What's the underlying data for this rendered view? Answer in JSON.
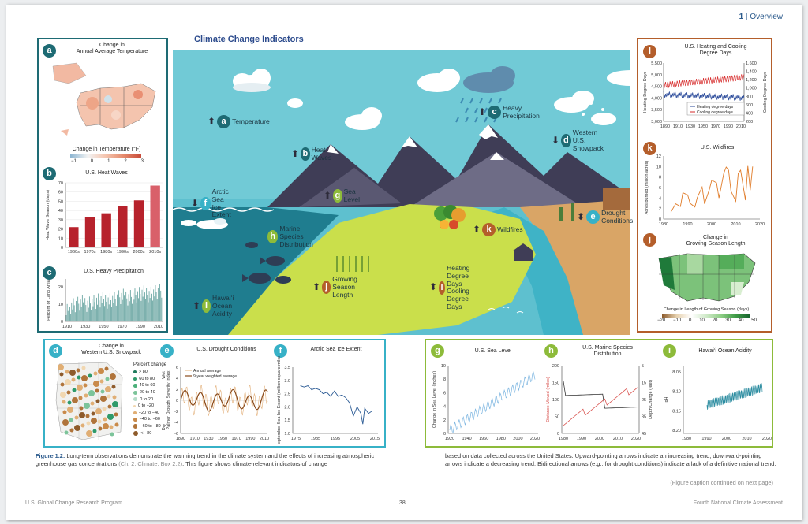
{
  "header": {
    "section_num": "1",
    "separator": "|",
    "section": "Overview"
  },
  "main_title": "Climate Change Indicators",
  "colors": {
    "teal": "#1e6b74",
    "orange": "#c0692b",
    "green": "#8dbb3a",
    "crimson": "#b7222c",
    "blue": "#2a5a94"
  },
  "panels": {
    "a": {
      "letter": "a",
      "title": "Change in\nAnnual Average Temperature",
      "legend_title": "Change in Temperature (°F)",
      "legend_ticks": [
        "−1",
        "0",
        "1",
        "2",
        "3"
      ]
    },
    "b": {
      "letter": "b",
      "title": "U.S. Heat Waves",
      "ylabel": "Heat Wave Season (days)",
      "yticks": [
        "0",
        "10",
        "20",
        "30",
        "40",
        "50",
        "60",
        "70"
      ]
    },
    "c": {
      "letter": "c",
      "title": "U.S. Heavy Precipitation",
      "ylabel": "Percent of Land Area",
      "yticks": [
        "0",
        "10",
        "20"
      ],
      "xticks": [
        "1910",
        "1930",
        "1950",
        "1970",
        "1990",
        "2010"
      ]
    },
    "d": {
      "letter": "d",
      "title": "Change in\nWestern U.S. Snowpack",
      "legend_title": "Percent change",
      "legend": [
        "> 80",
        "60 to 80",
        "40 to 60",
        "20 to 40",
        "0 to 20",
        "0 to −20",
        "−20 to −40",
        "−40 to −60",
        "−60 to −80",
        "< −80"
      ]
    },
    "e": {
      "letter": "e",
      "title": "U.S. Drought Conditions",
      "ylabel": "Palmer Drought Severity Index",
      "wet": "Wet",
      "dry": "Dry",
      "legend": [
        "Annual average",
        "9-year weighted average"
      ],
      "yticks": [
        "6",
        "4",
        "2",
        "0",
        "-2",
        "-4",
        "-6"
      ],
      "xticks": [
        "1890",
        "1910",
        "1930",
        "1950",
        "1970",
        "1990",
        "2010"
      ]
    },
    "f": {
      "letter": "f",
      "title": "Arctic Sea Ice Extent",
      "ylabel": "September Sea Ice Extent (million square miles)",
      "yticks": [
        "3.5",
        "3.0",
        "2.5",
        "2.0",
        "1.5",
        "1.0"
      ],
      "xticks": [
        "1975",
        "1985",
        "1995",
        "2005",
        "2015"
      ]
    },
    "g": {
      "letter": "g",
      "title": "U.S. Sea Level",
      "ylabel": "Change in Sea Level (inches)",
      "yticks": [
        "10",
        "8",
        "6",
        "4",
        "2",
        "0"
      ],
      "xticks": [
        "1920",
        "1940",
        "1960",
        "1980",
        "2000",
        "2020"
      ]
    },
    "h": {
      "letter": "h",
      "title": "U.S. Marine Species\nDistribution",
      "ylabel_left": "Distance Moved (miles)",
      "ylabel_right": "Depth Change (feet)",
      "yticks_left": [
        "200",
        "150",
        "100",
        "50",
        "0"
      ],
      "yticks_right": [
        "5",
        "15",
        "25",
        "35",
        "45"
      ],
      "xticks": [
        "1980",
        "1990",
        "2000",
        "2010",
        "2020"
      ]
    },
    "i": {
      "letter": "i",
      "title": "Hawai‘i Ocean Acidity",
      "ylabel": "pH",
      "yticks": [
        "8.05",
        "8.10",
        "8.15",
        "8.20"
      ],
      "xticks": [
        "1980",
        "1990",
        "2000",
        "2010",
        "2020"
      ]
    },
    "j": {
      "letter": "j",
      "title": "Change in\nGrowing Season Length",
      "legend_title": "Change in Length of Growing Season (days)",
      "legend_ticks": [
        "−20",
        "−10",
        "0",
        "10",
        "20",
        "30",
        "40",
        "50"
      ]
    },
    "k": {
      "letter": "k",
      "title": "U.S. Wildfires",
      "ylabel": "Acres burned (million acres)",
      "yticks": [
        "12",
        "10",
        "8",
        "6",
        "4",
        "2",
        "0"
      ],
      "xticks": [
        "1980",
        "1990",
        "2000",
        "2010",
        "2020"
      ]
    },
    "l": {
      "letter": "l",
      "title": "U.S. Heating and Cooling\nDegree Days",
      "ylabel_left": "Heating Degree Days",
      "ylabel_right": "Cooling Degree Days",
      "yticks_left": [
        "5,500",
        "5,000",
        "4,500",
        "4,000",
        "3,500",
        "3,000"
      ],
      "yticks_right": [
        "1,600",
        "1,400",
        "1,200",
        "1,000",
        "800",
        "600",
        "400",
        "200"
      ],
      "legend": [
        "Heating degree days",
        "Cooling degree days"
      ],
      "xticks": [
        "1890",
        "1910",
        "1930",
        "1950",
        "1970",
        "1990",
        "2010"
      ]
    }
  },
  "scene": {
    "temperature": "Temperature",
    "heat_waves": "Heat Waves",
    "heavy_precip": "Heavy\nPrecipitation",
    "snowpack": "Western\nU.S. Snowpack",
    "arctic": "Arctic Sea\nIce Extent",
    "sea_level": "Sea Level",
    "drought": "Drought\nConditions",
    "marine": "Marine Species\nDistribution",
    "wildfires": "Wildfires",
    "growing": "Growing\nSeason Length",
    "hdd": "Heating Degree Days\nCooling Degree Days",
    "hawaii": "Hawai‘i\nOcean Acidity"
  },
  "caption": {
    "label": "Figure 1.2:",
    "text1": " Long-term observations demonstrate the warming trend in the climate system and the effects of increasing atmospheric greenhouse gas concentrations ",
    "ref": "(Ch. 2: Climate, Box 2.2)",
    "text2": ". This figure shows climate-relevant indicators of change",
    "text3": "based on data collected across the United States. Upward-pointing arrows indicate an increasing trend; downward-pointing arrows indicate a decreasing trend. Bidirectional arrows (e.g., for drought conditions) indicate a lack of a definitive national trend.",
    "continued": "(Figure caption continued on next page)"
  },
  "footer": {
    "left": "U.S. Global Change Research Program",
    "page": "38",
    "right": "Fourth National Climate Assessment"
  },
  "chart_data": [
    {
      "type": "bar",
      "title": "U.S. Heat Waves",
      "categories": [
        "1960s",
        "1970s",
        "1980s",
        "1990s",
        "2000s",
        "2010s"
      ],
      "values": [
        22,
        33,
        37,
        45,
        51,
        67
      ],
      "ylabel": "Heat Wave Season (days)",
      "ylim": [
        0,
        70
      ]
    },
    {
      "type": "line",
      "title": "U.S. Wildfires",
      "x": [
        1983,
        1985,
        1987,
        1988,
        1990,
        1991,
        1993,
        1994,
        1996,
        1997,
        1999,
        2000,
        2002,
        2003,
        2005,
        2006,
        2007,
        2008,
        2010,
        2011,
        2012,
        2014,
        2015,
        2016,
        2017
      ],
      "values": [
        1.3,
        2.9,
        2.4,
        5.0,
        4.6,
        3.0,
        2.3,
        4.1,
        6.1,
        2.9,
        5.6,
        7.4,
        6.9,
        4.0,
        8.7,
        9.9,
        9.3,
        5.3,
        3.4,
        8.7,
        9.3,
        3.6,
        10.1,
        5.5,
        10.0
      ],
      "ylabel": "Acres burned (million acres)",
      "xlim": [
        1980,
        2020
      ],
      "ylim": [
        0,
        12
      ]
    },
    {
      "type": "line",
      "title": "Arctic Sea Ice Extent",
      "x": [
        1979,
        1981,
        1983,
        1985,
        1987,
        1989,
        1991,
        1993,
        1995,
        1997,
        1999,
        2001,
        2003,
        2005,
        2007,
        2009,
        2011,
        2012,
        2013,
        2015,
        2017
      ],
      "values": [
        2.8,
        2.75,
        2.8,
        2.65,
        2.7,
        2.65,
        2.5,
        2.55,
        2.4,
        2.6,
        2.4,
        2.45,
        2.35,
        2.15,
        1.65,
        2.0,
        1.75,
        1.35,
        1.95,
        1.75,
        1.85
      ],
      "ylabel": "September Sea Ice Extent (million square miles)",
      "xlim": [
        1975,
        2020
      ],
      "ylim": [
        1.0,
        3.5
      ]
    }
  ]
}
